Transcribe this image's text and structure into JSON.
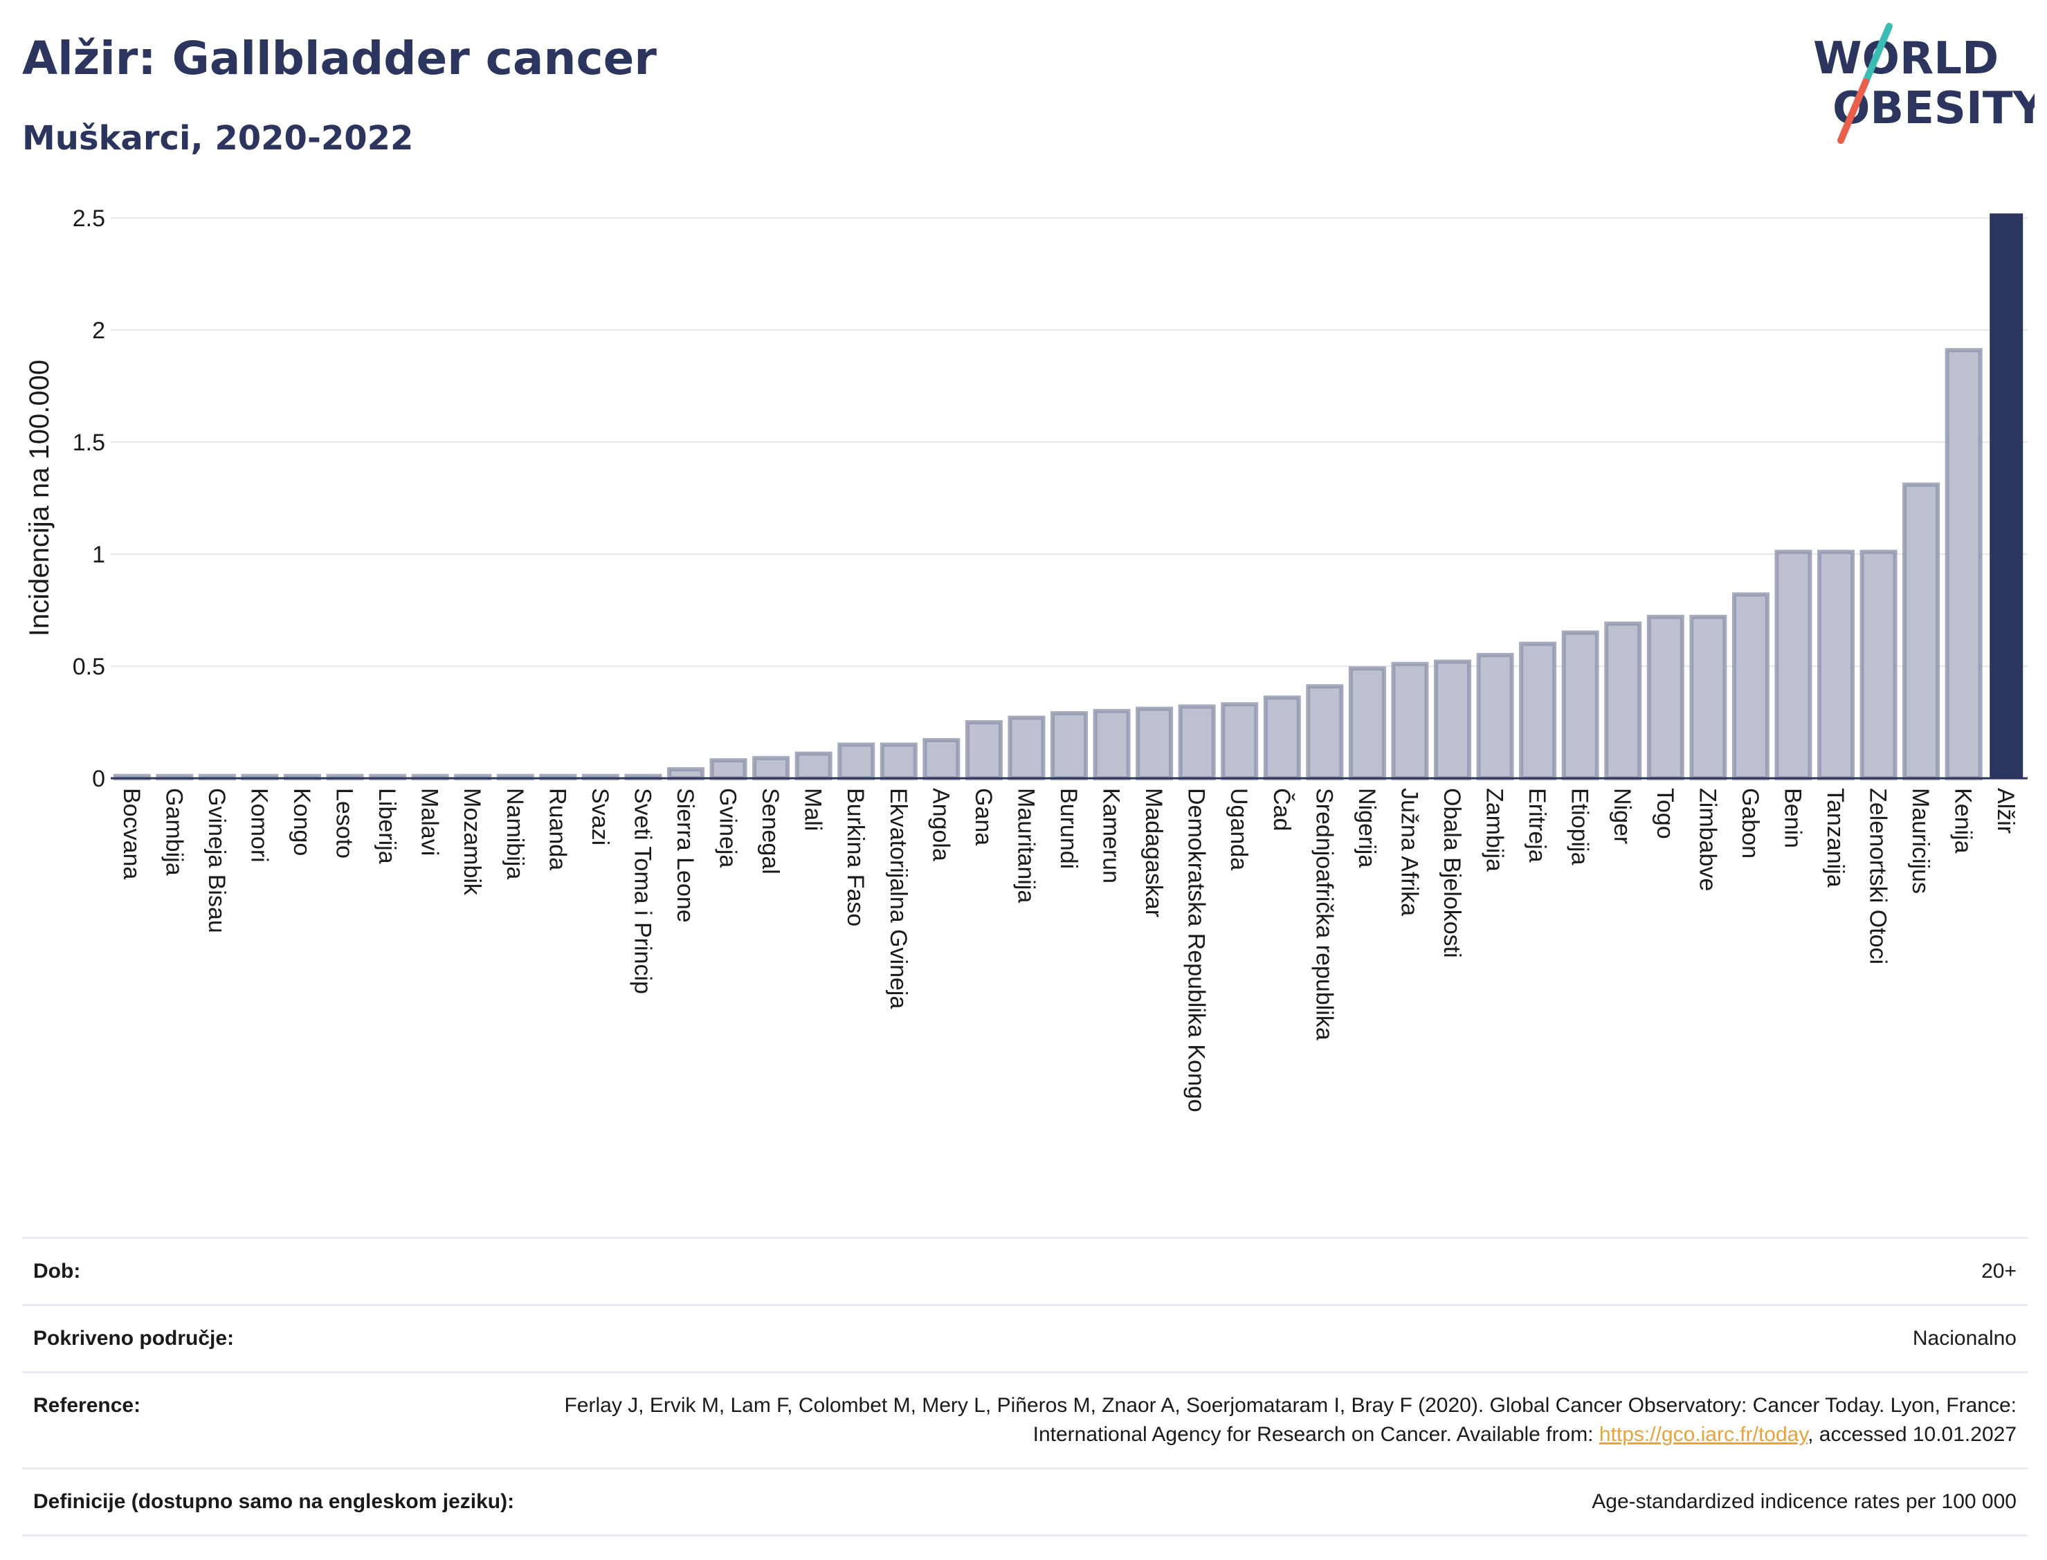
{
  "header": {
    "title": "Alžir: Gallbladder cancer",
    "subtitle": "Muškarci, 2020-2022"
  },
  "logo": {
    "line1": "WORLD",
    "line2": "OBESITY"
  },
  "colors": {
    "title": "#2b355e",
    "bar": "#bdc1cf",
    "bar_stroke": "#8e95ad",
    "highlight": "#2b355e",
    "grid": "#e6e8ee",
    "logo_teal": "#3bbdb5",
    "logo_red": "#e8604c",
    "link": "#e8a33d"
  },
  "chart_data": {
    "type": "bar",
    "ylabel": "Incidencija na 100.000",
    "ylim": [
      0,
      2.5
    ],
    "yticks": [
      0,
      0.5,
      1,
      1.5,
      2,
      2.5
    ],
    "ytick_labels": [
      "0",
      "0.5",
      "1",
      "1.5",
      "2",
      "2.5"
    ],
    "grid": true,
    "highlight_category": "Alžir",
    "categories": [
      "Bocvana",
      "Gambija",
      "Gvineja Bisau",
      "Komori",
      "Kongo",
      "Lesoto",
      "Liberija",
      "Malavi",
      "Mozambik",
      "Namibija",
      "Ruanda",
      "Svazi",
      "Sveti Toma i Princip",
      "Sierra Leone",
      "Gvineja",
      "Senegal",
      "Mali",
      "Burkina Faso",
      "Ekvatorijalna Gvineja",
      "Angola",
      "Gana",
      "Mauritanija",
      "Burundi",
      "Kamerun",
      "Madagaskar",
      "Demokratska Republika Kongo",
      "Uganda",
      "Čad",
      "Srednjoafrička republika",
      "Nigerija",
      "Južna Afrika",
      "Obala Bjelokosti",
      "Zambija",
      "Eritreja",
      "Etiopija",
      "Niger",
      "Togo",
      "Zimbabve",
      "Gabon",
      "Benin",
      "Tanzanija",
      "Zelenortski Otoci",
      "Mauricijus",
      "Kenija",
      "Alžir"
    ],
    "values": [
      0.01,
      0.01,
      0.01,
      0.01,
      0.01,
      0.01,
      0.01,
      0.01,
      0.01,
      0.01,
      0.01,
      0.01,
      0.01,
      0.04,
      0.08,
      0.09,
      0.11,
      0.15,
      0.15,
      0.17,
      0.25,
      0.27,
      0.29,
      0.3,
      0.31,
      0.32,
      0.33,
      0.36,
      0.41,
      0.49,
      0.51,
      0.52,
      0.55,
      0.6,
      0.65,
      0.69,
      0.72,
      0.72,
      0.82,
      1.01,
      1.01,
      1.01,
      1.31,
      1.91,
      2.52
    ]
  },
  "meta": [
    {
      "label": "Dob:",
      "value": "20+"
    },
    {
      "label": "Pokriveno područje:",
      "value": "Nacionalno"
    },
    {
      "label": "Reference:",
      "value_pre": "Ferlay J, Ervik M, Lam F, Colombet M, Mery L, Piñeros M, Znaor A, Soerjomataram I, Bray F (2020). Global Cancer Observatory: Cancer Today. Lyon, France: International Agency for Research on Cancer. Available from: ",
      "link": "https://gco.iarc.fr/today",
      "value_post": ", accessed 10.01.2027"
    },
    {
      "label": "Definicije (dostupno samo na engleskom jeziku):",
      "value": "Age-standardized indicence rates per 100 000"
    }
  ]
}
